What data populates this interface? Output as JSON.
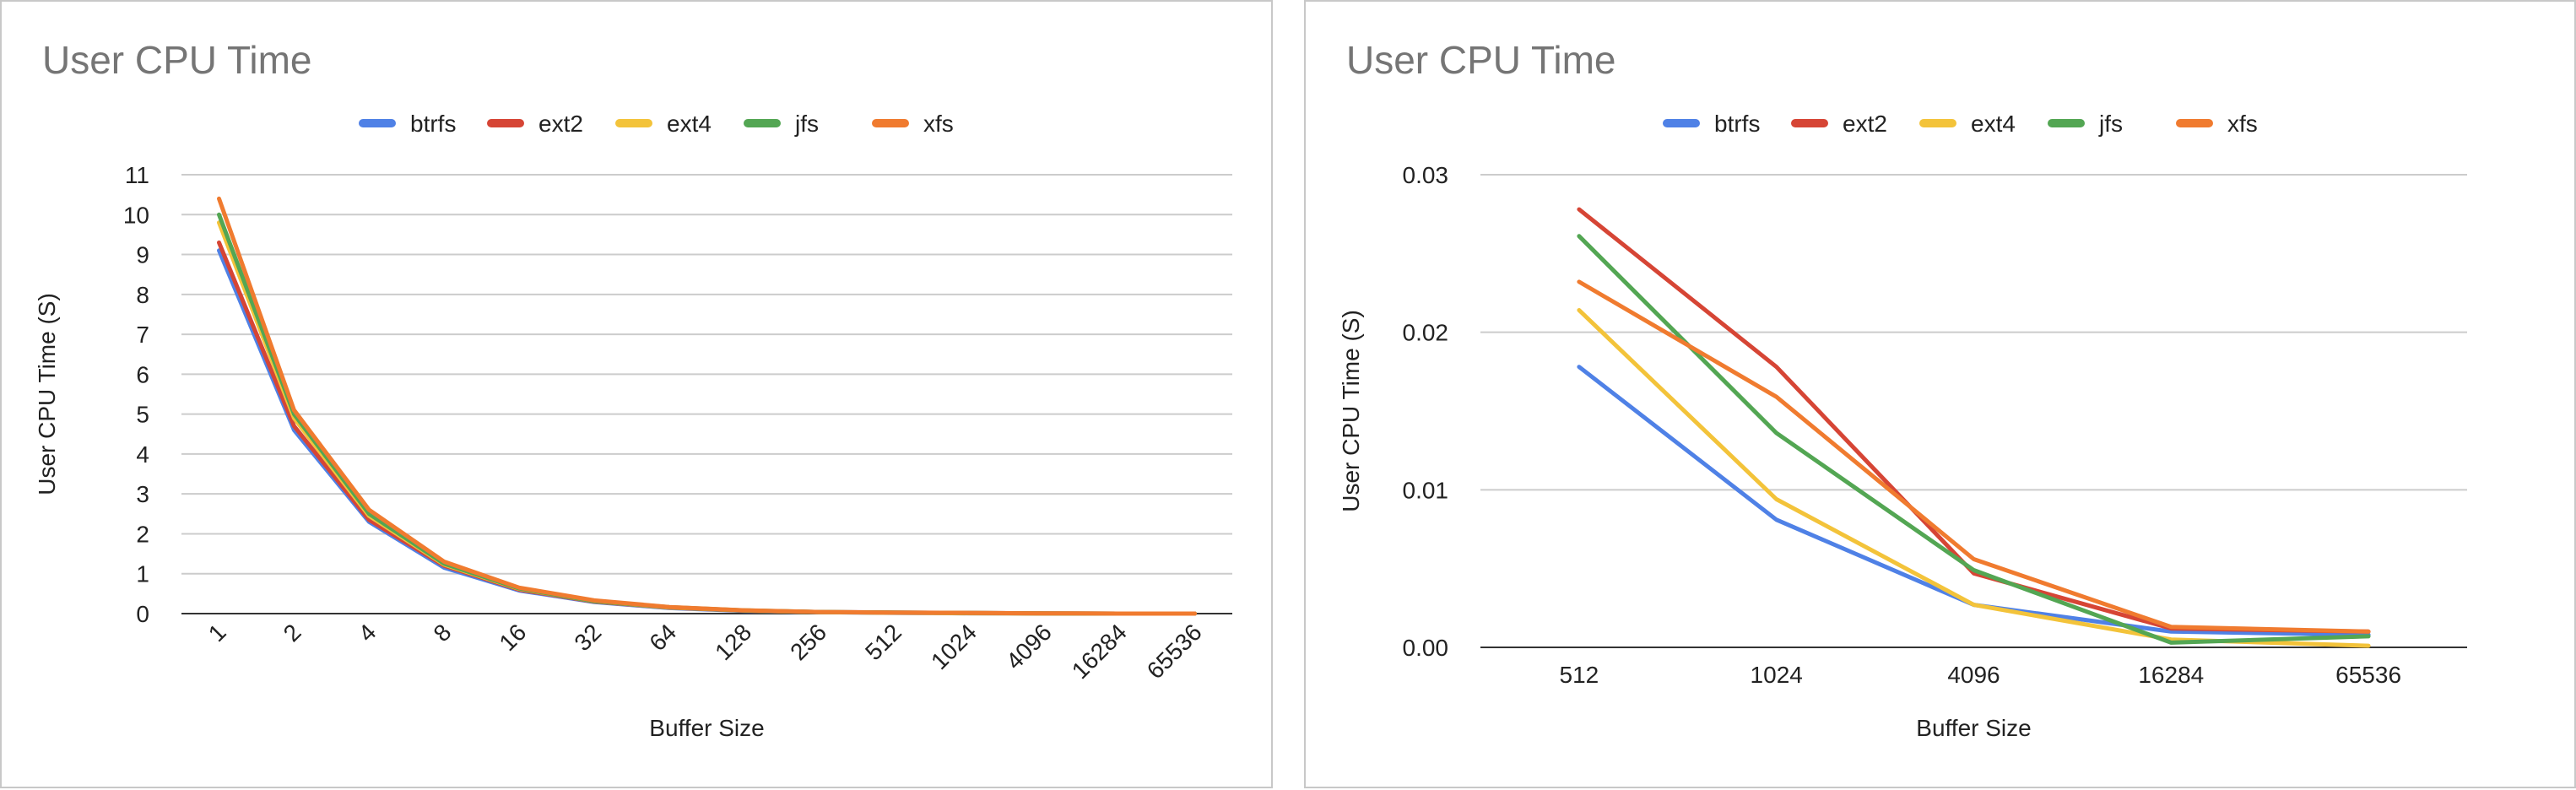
{
  "chart_data": [
    {
      "type": "line",
      "title": "User CPU Time",
      "xlabel": "Buffer Size",
      "ylabel": "User CPU Time (S)",
      "categories": [
        "1",
        "2",
        "4",
        "8",
        "16",
        "32",
        "64",
        "128",
        "256",
        "512",
        "1024",
        "4096",
        "16284",
        "65536"
      ],
      "ylim": [
        0,
        11
      ],
      "yticks": [
        "0",
        "1",
        "2",
        "3",
        "4",
        "5",
        "6",
        "7",
        "8",
        "9",
        "10",
        "11"
      ],
      "grid": true,
      "legend_position": "top",
      "series": [
        {
          "name": "btrfs",
          "color": "#4f81e6",
          "values": [
            9.1,
            4.6,
            2.3,
            1.15,
            0.58,
            0.29,
            0.14,
            0.07,
            0.035,
            0.018,
            0.008,
            0.003,
            0.001,
            0.001
          ]
        },
        {
          "name": "ext2",
          "color": "#d64535",
          "values": [
            9.3,
            4.7,
            2.35,
            1.2,
            0.6,
            0.3,
            0.15,
            0.075,
            0.04,
            0.028,
            0.018,
            0.005,
            0.001,
            0.001
          ]
        },
        {
          "name": "ext4",
          "color": "#f3c33a",
          "values": [
            9.8,
            4.9,
            2.45,
            1.23,
            0.62,
            0.31,
            0.155,
            0.078,
            0.038,
            0.021,
            0.009,
            0.003,
            0.001,
            0.0005
          ]
        },
        {
          "name": "jfs",
          "color": "#53a653",
          "values": [
            10.0,
            5.0,
            2.5,
            1.25,
            0.63,
            0.31,
            0.16,
            0.08,
            0.04,
            0.026,
            0.014,
            0.005,
            0.0005,
            0.001
          ]
        },
        {
          "name": "xfs",
          "color": "#f07b2f",
          "values": [
            10.4,
            5.1,
            2.6,
            1.3,
            0.65,
            0.33,
            0.165,
            0.082,
            0.041,
            0.023,
            0.016,
            0.0055,
            0.001,
            0.001
          ]
        }
      ]
    },
    {
      "type": "line",
      "title": "User CPU Time",
      "xlabel": "Buffer Size",
      "ylabel": "User CPU Time (S)",
      "categories": [
        "512",
        "1024",
        "4096",
        "16284",
        "65536"
      ],
      "ylim": [
        0,
        0.03
      ],
      "yticks": [
        "0.00",
        "0.01",
        "0.02",
        "0.03"
      ],
      "grid": true,
      "legend_position": "top",
      "series": [
        {
          "name": "btrfs",
          "color": "#4f81e6",
          "values": [
            0.0178,
            0.0081,
            0.0027,
            0.001,
            0.0008
          ]
        },
        {
          "name": "ext2",
          "color": "#d64535",
          "values": [
            0.0278,
            0.0178,
            0.0047,
            0.0012,
            0.001
          ]
        },
        {
          "name": "ext4",
          "color": "#f3c33a",
          "values": [
            0.0214,
            0.0094,
            0.0027,
            0.0005,
            0.0001
          ]
        },
        {
          "name": "jfs",
          "color": "#53a653",
          "values": [
            0.0261,
            0.0136,
            0.0049,
            0.0003,
            0.0007
          ]
        },
        {
          "name": "xfs",
          "color": "#f07b2f",
          "values": [
            0.0232,
            0.0159,
            0.0056,
            0.0013,
            0.001
          ]
        }
      ]
    }
  ]
}
